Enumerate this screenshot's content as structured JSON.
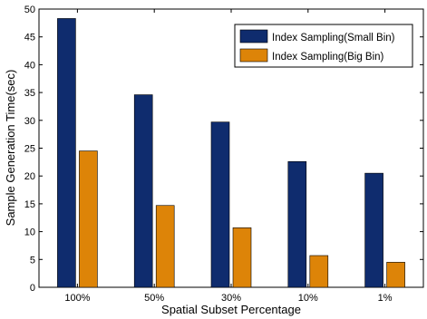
{
  "chart_data": {
    "type": "bar",
    "categories": [
      "100%",
      "50%",
      "30%",
      "10%",
      "1%"
    ],
    "series": [
      {
        "name": "Index Sampling(Small Bin)",
        "color": "#0f2c6e",
        "values": [
          48.3,
          34.6,
          29.7,
          22.6,
          20.5
        ]
      },
      {
        "name": "Index Sampling(Big Bin)",
        "color": "#dd8408",
        "values": [
          24.5,
          14.7,
          10.7,
          5.7,
          4.5
        ]
      }
    ],
    "xlabel": "Spatial Subset Percentage",
    "ylabel": "Sample Generation Time(sec)",
    "ylim": [
      0,
      50
    ],
    "yticks": [
      0,
      5,
      10,
      15,
      20,
      25,
      30,
      35,
      40,
      45,
      50
    ],
    "grid": false,
    "legend": "top-right"
  }
}
